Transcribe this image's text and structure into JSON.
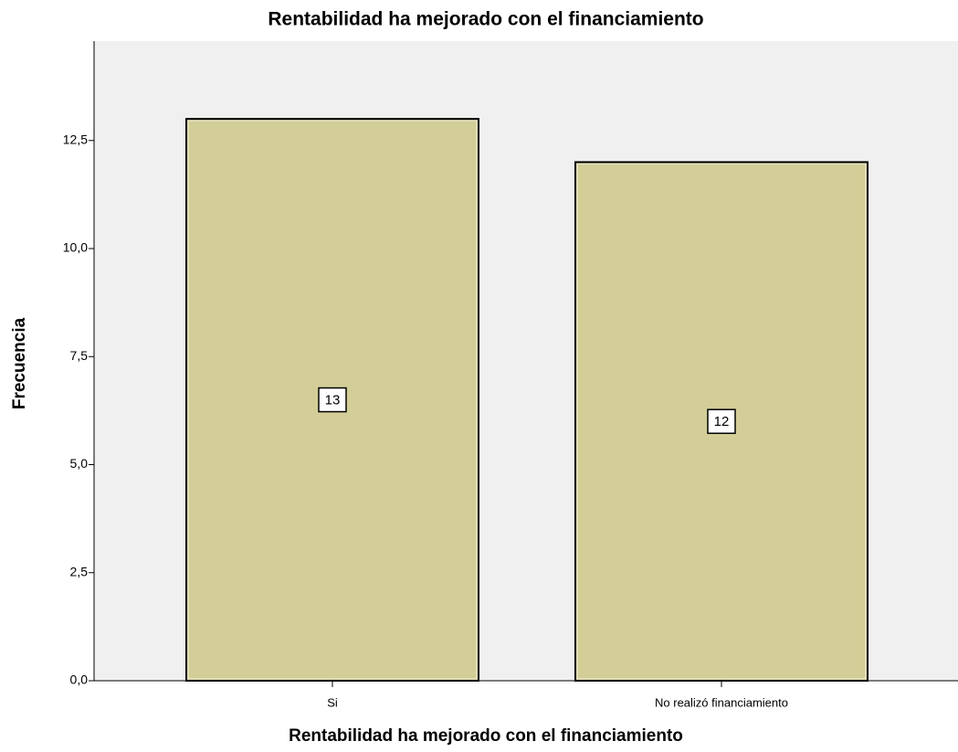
{
  "chart_data": {
    "type": "bar",
    "title": "Rentabilidad ha mejorado con el financiamiento",
    "x_label": "Rentabilidad ha mejorado con el financiamiento",
    "y_label": "Frecuencia",
    "categories": [
      "Si",
      "No realizó financiamiento"
    ],
    "values": [
      13,
      12
    ],
    "color": "#d3ce97",
    "ylim": [
      0,
      14.8
    ],
    "yticks": [
      {
        "value": 0,
        "label": "0,0"
      },
      {
        "value": 2.5,
        "label": "2,5"
      },
      {
        "value": 5,
        "label": "5,0"
      },
      {
        "value": 7.5,
        "label": "7,5"
      },
      {
        "value": 10,
        "label": "10,0"
      },
      {
        "value": 12.5,
        "label": "12,5"
      }
    ]
  }
}
